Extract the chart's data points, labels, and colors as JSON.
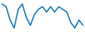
{
  "x": [
    0,
    1,
    2,
    3,
    4,
    5,
    6,
    7,
    8,
    9,
    10,
    11,
    12,
    13,
    14,
    15,
    16,
    17,
    18,
    19,
    20
  ],
  "y": [
    10,
    9,
    4,
    1,
    8,
    10,
    5,
    2,
    6,
    8,
    9,
    7,
    9,
    7,
    9,
    8,
    7,
    3,
    1,
    4,
    2
  ],
  "line_color": "#1a7abf",
  "linewidth": 1.3,
  "background_color": "#ffffff",
  "ylim": [
    -0.5,
    11.5
  ]
}
